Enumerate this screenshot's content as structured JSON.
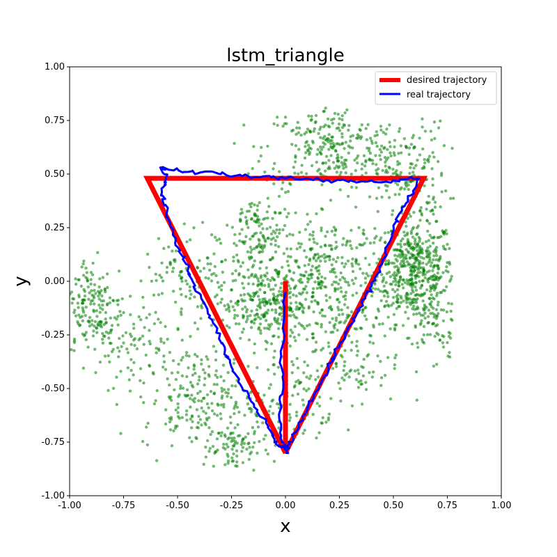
{
  "chart_data": {
    "type": "scatter",
    "title": "lstm_triangle",
    "xlabel": "x",
    "ylabel": "y",
    "xlim": [
      -1.0,
      1.0
    ],
    "ylim": [
      -1.0,
      1.0
    ],
    "xticks": [
      "-1.00",
      "-0.75",
      "-0.50",
      "-0.25",
      "0.00",
      "0.25",
      "0.50",
      "0.75",
      "1.00"
    ],
    "yticks": [
      "-1.00",
      "-0.75",
      "-0.50",
      "-0.25",
      "0.00",
      "0.25",
      "0.50",
      "0.75",
      "1.00"
    ],
    "grid": false,
    "legend_position": "top-right",
    "series": [
      {
        "name": "desired trajectory",
        "kind": "line",
        "color": "#ff0000",
        "x": [
          0.0,
          0.0,
          -0.64,
          0.64,
          0.0
        ],
        "y": [
          0.0,
          -0.8,
          0.48,
          0.48,
          -0.8
        ]
      },
      {
        "name": "real trajectory",
        "kind": "line",
        "color": "#0000ff",
        "x": [
          0.0,
          -0.01,
          -0.02,
          -0.01,
          -0.03,
          -0.02,
          0.0,
          -0.03,
          -0.06,
          -0.09,
          -0.13,
          -0.17,
          -0.21,
          -0.25,
          -0.28,
          -0.32,
          -0.35,
          -0.39,
          -0.43,
          -0.46,
          -0.5,
          -0.52,
          -0.55,
          -0.57,
          -0.56,
          -0.55,
          -0.58,
          -0.54,
          -0.45,
          -0.38,
          -0.3,
          -0.2,
          -0.1,
          0.0,
          0.1,
          0.2,
          0.3,
          0.4,
          0.5,
          0.62,
          0.58,
          0.54,
          0.5,
          0.48,
          0.45,
          0.43,
          0.4,
          0.37,
          0.33,
          0.29,
          0.25,
          0.21,
          0.17,
          0.13,
          0.09,
          0.05,
          0.02,
          0.0
        ],
        "y": [
          -0.05,
          -0.2,
          -0.35,
          -0.5,
          -0.62,
          -0.72,
          -0.78,
          -0.77,
          -0.72,
          -0.66,
          -0.6,
          -0.54,
          -0.48,
          -0.4,
          -0.32,
          -0.24,
          -0.16,
          -0.08,
          0.0,
          0.08,
          0.16,
          0.24,
          0.32,
          0.4,
          0.45,
          0.49,
          0.53,
          0.52,
          0.51,
          0.51,
          0.5,
          0.49,
          0.49,
          0.48,
          0.48,
          0.47,
          0.47,
          0.47,
          0.47,
          0.48,
          0.4,
          0.33,
          0.26,
          0.18,
          0.1,
          0.04,
          -0.02,
          -0.08,
          -0.15,
          -0.22,
          -0.3,
          -0.38,
          -0.46,
          -0.54,
          -0.62,
          -0.7,
          -0.76,
          -0.8
        ]
      },
      {
        "name": "",
        "kind": "scatter",
        "color": "#008000",
        "clusters": [
          {
            "cx": 0.6,
            "cy": 0.05,
            "sx": 0.09,
            "sy": 0.12,
            "n": 500
          },
          {
            "cx": 0.2,
            "cy": 0.62,
            "sx": 0.15,
            "sy": 0.1,
            "n": 260
          },
          {
            "cx": 0.55,
            "cy": 0.5,
            "sx": 0.1,
            "sy": 0.12,
            "n": 180
          },
          {
            "cx": 0.2,
            "cy": 0.05,
            "sx": 0.14,
            "sy": 0.12,
            "n": 260
          },
          {
            "cx": -0.12,
            "cy": 0.2,
            "sx": 0.08,
            "sy": 0.12,
            "n": 160
          },
          {
            "cx": -0.1,
            "cy": -0.1,
            "sx": 0.12,
            "sy": 0.08,
            "n": 300
          },
          {
            "cx": -0.9,
            "cy": -0.12,
            "sx": 0.07,
            "sy": 0.12,
            "n": 170
          },
          {
            "cx": -0.72,
            "cy": -0.25,
            "sx": 0.1,
            "sy": 0.12,
            "n": 90
          },
          {
            "cx": -0.4,
            "cy": -0.55,
            "sx": 0.13,
            "sy": 0.12,
            "n": 220
          },
          {
            "cx": -0.25,
            "cy": -0.78,
            "sx": 0.06,
            "sy": 0.06,
            "n": 70
          },
          {
            "cx": 0.25,
            "cy": -0.3,
            "sx": 0.15,
            "sy": 0.15,
            "n": 160
          },
          {
            "cx": -0.45,
            "cy": 0.05,
            "sx": 0.1,
            "sy": 0.1,
            "n": 90
          },
          {
            "cx": 0.0,
            "cy": -0.55,
            "sx": 0.12,
            "sy": 0.12,
            "n": 120
          },
          {
            "cx": 0.7,
            "cy": -0.2,
            "sx": 0.06,
            "sy": 0.1,
            "n": 80
          }
        ]
      }
    ]
  }
}
